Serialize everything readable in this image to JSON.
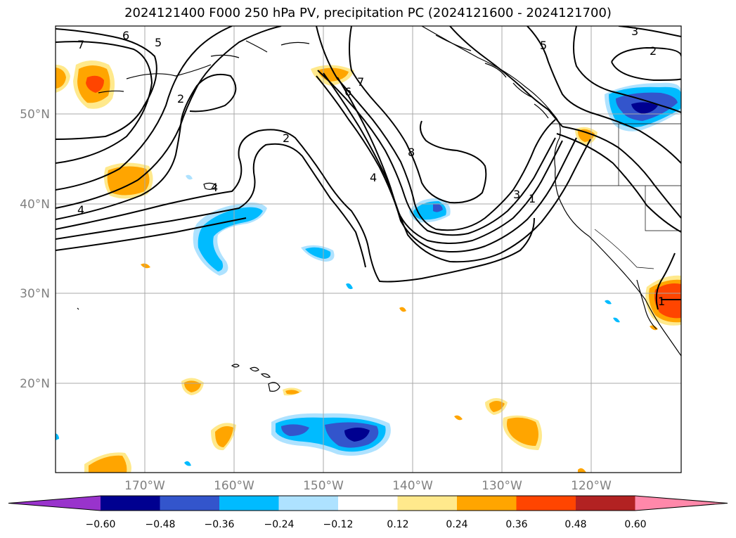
{
  "title": "2024121400 F000 250 hPa PV, precipitation PC (2024121600 - 2024121700)",
  "map": {
    "lat_labels": [
      "50°N",
      "40°N",
      "30°N",
      "20°N"
    ],
    "lon_labels": [
      "170°W",
      "160°W",
      "150°W",
      "140°W",
      "130°W",
      "120°W"
    ],
    "grid_color": "#a9a9a9"
  },
  "pv_contour_labels": [
    "7",
    "6",
    "5",
    "2",
    "2",
    "4",
    "4",
    "7",
    "6",
    "8",
    "4",
    "3",
    "1",
    "5",
    "3",
    "2",
    "1"
  ],
  "colorbar": {
    "tick_labels": [
      "−0.60",
      "−0.48",
      "−0.36",
      "−0.24",
      "−0.12",
      "0.12",
      "0.24",
      "0.36",
      "0.48",
      "0.60"
    ],
    "colors": [
      "#9933cc",
      "#000090",
      "#3355cc",
      "#00bbff",
      "#aee2ff",
      "#ffffff",
      "#ffe98c",
      "#ffa500",
      "#ff4500",
      "#b22222",
      "#ff88aa"
    ]
  },
  "icons": {
    "hawaii": "hawaii-islands-icon",
    "coast": "north-america-coastline-icon"
  }
}
